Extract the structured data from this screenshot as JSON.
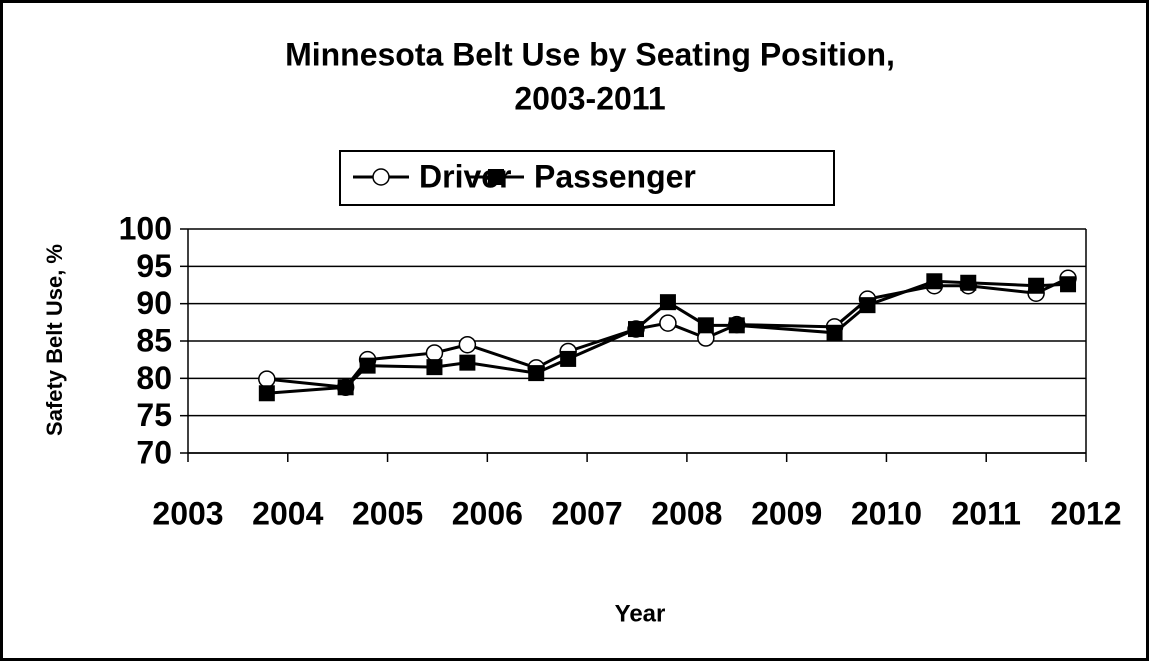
{
  "chart_data": {
    "type": "line",
    "title": [
      "Minnesota Belt Use by Seating Position,",
      "2003-2011"
    ],
    "x_label": "Year",
    "y_label": "Safety Belt Use, %",
    "x": [
      2003.79,
      2004.58,
      2004.8,
      2005.47,
      2005.8,
      2006.49,
      2006.81,
      2007.49,
      2007.81,
      2008.19,
      2008.5,
      2009.48,
      2009.81,
      2010.48,
      2010.82,
      2011.5,
      2011.82
    ],
    "series": [
      {
        "name": "Driver",
        "color": "#000000",
        "marker": "circle",
        "values": [
          79.9,
          78.8,
          82.5,
          83.4,
          84.5,
          81.4,
          83.6,
          86.6,
          87.4,
          85.4,
          87.2,
          86.9,
          90.6,
          92.4,
          92.4,
          91.4,
          93.4
        ]
      },
      {
        "name": "Passenger",
        "color": "#000000",
        "marker": "square",
        "values": [
          78.0,
          78.8,
          81.7,
          81.5,
          82.1,
          80.7,
          82.6,
          86.6,
          90.2,
          87.1,
          87.1,
          86.1,
          89.8,
          93.0,
          92.8,
          92.4,
          92.6
        ]
      }
    ],
    "xlim": [
      2003,
      2012
    ],
    "xticks": [
      2003,
      2004,
      2005,
      2006,
      2007,
      2008,
      2009,
      2010,
      2011,
      2012
    ],
    "ylim": [
      70,
      100
    ],
    "yticks": [
      70,
      75,
      80,
      85,
      90,
      95,
      100
    ],
    "grid": true,
    "legend": "top"
  }
}
